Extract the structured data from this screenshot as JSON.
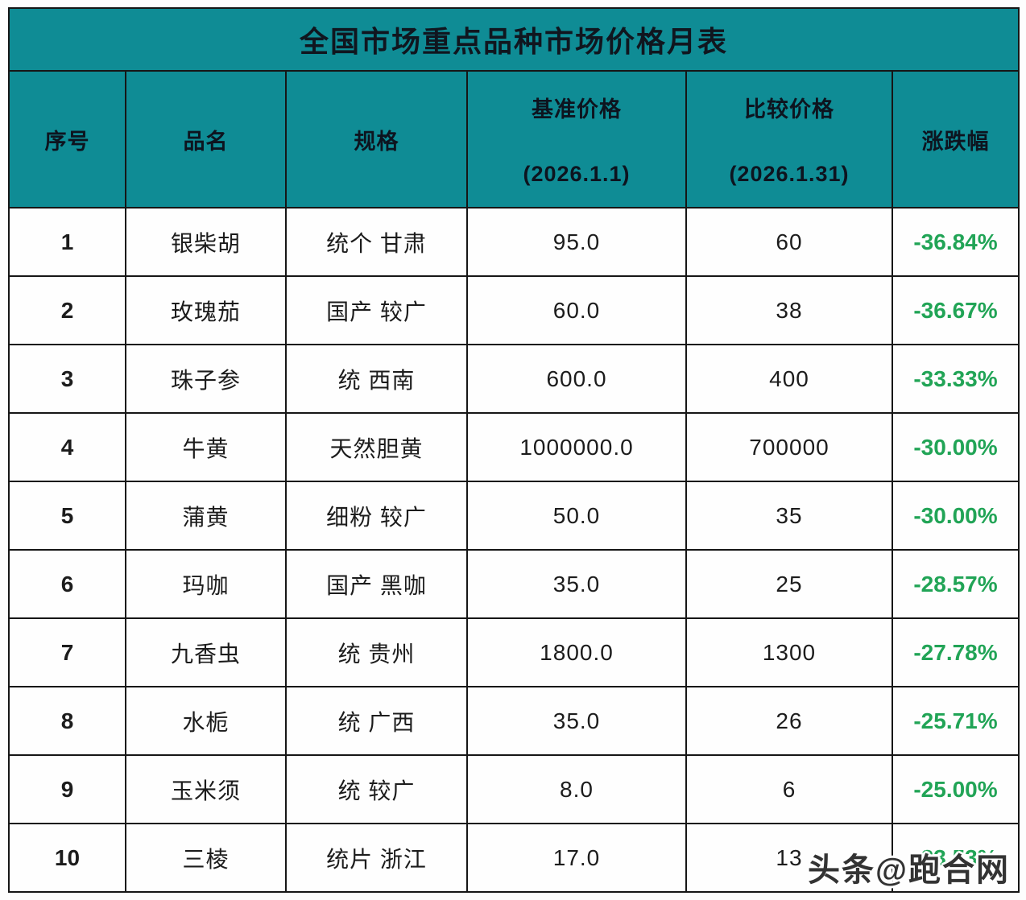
{
  "title": "全国市场重点品种市场价格月表",
  "watermark": {
    "text": "头条@跑合网"
  },
  "colors": {
    "header_bg": "#0f8c95",
    "change_green": "#21a456",
    "border": "#161616",
    "title_text": "#10161f"
  },
  "columns": [
    {
      "key": "index",
      "label": "序号",
      "sub": ""
    },
    {
      "key": "name",
      "label": "品名",
      "sub": ""
    },
    {
      "key": "spec",
      "label": "规格",
      "sub": ""
    },
    {
      "key": "base_price",
      "label": "基准价格",
      "sub": "(2026.1.1)"
    },
    {
      "key": "compare_price",
      "label": "比较价格",
      "sub": "(2026.1.31)"
    },
    {
      "key": "change",
      "label": "涨跌幅",
      "sub": ""
    }
  ],
  "rows": [
    {
      "index": "1",
      "name": "银柴胡",
      "spec": "统个 甘肃",
      "base_price": "95.0",
      "compare_price": "60",
      "change": "-36.84%"
    },
    {
      "index": "2",
      "name": "玫瑰茄",
      "spec": "国产 较广",
      "base_price": "60.0",
      "compare_price": "38",
      "change": "-36.67%"
    },
    {
      "index": "3",
      "name": "珠子参",
      "spec": "统 西南",
      "base_price": "600.0",
      "compare_price": "400",
      "change": "-33.33%"
    },
    {
      "index": "4",
      "name": "牛黄",
      "spec": "天然胆黄",
      "base_price": "1000000.0",
      "compare_price": "700000",
      "change": "-30.00%"
    },
    {
      "index": "5",
      "name": "蒲黄",
      "spec": "细粉 较广",
      "base_price": "50.0",
      "compare_price": "35",
      "change": "-30.00%"
    },
    {
      "index": "6",
      "name": "玛咖",
      "spec": "国产 黑咖",
      "base_price": "35.0",
      "compare_price": "25",
      "change": "-28.57%"
    },
    {
      "index": "7",
      "name": "九香虫",
      "spec": "统 贵州",
      "base_price": "1800.0",
      "compare_price": "1300",
      "change": "-27.78%"
    },
    {
      "index": "8",
      "name": "水栀",
      "spec": "统 广西",
      "base_price": "35.0",
      "compare_price": "26",
      "change": "-25.71%"
    },
    {
      "index": "9",
      "name": "玉米须",
      "spec": "统 较广",
      "base_price": "8.0",
      "compare_price": "6",
      "change": "-25.00%"
    },
    {
      "index": "10",
      "name": "三棱",
      "spec": "统片 浙江",
      "base_price": "17.0",
      "compare_price": "13",
      "change": "-23.53%"
    }
  ],
  "chart_data": {
    "type": "table",
    "title": "全国市场重点品种市场价格月表",
    "columns": [
      "序号",
      "品名",
      "规格",
      "基准价格 (2026.1.1)",
      "比较价格 (2026.1.31)",
      "涨跌幅"
    ],
    "rows": [
      [
        "1",
        "银柴胡",
        "统个 甘肃",
        95.0,
        60,
        "-36.84%"
      ],
      [
        "2",
        "玫瑰茄",
        "国产 较广",
        60.0,
        38,
        "-36.67%"
      ],
      [
        "3",
        "珠子参",
        "统 西南",
        600.0,
        400,
        "-33.33%"
      ],
      [
        "4",
        "牛黄",
        "天然胆黄",
        1000000.0,
        700000,
        "-30.00%"
      ],
      [
        "5",
        "蒲黄",
        "细粉 较广",
        50.0,
        35,
        "-30.00%"
      ],
      [
        "6",
        "玛咖",
        "国产 黑咖",
        35.0,
        25,
        "-28.57%"
      ],
      [
        "7",
        "九香虫",
        "统 贵州",
        1800.0,
        1300,
        "-27.78%"
      ],
      [
        "8",
        "水栀",
        "统 广西",
        35.0,
        26,
        "-25.71%"
      ],
      [
        "9",
        "玉米须",
        "统 较广",
        8.0,
        6,
        "-25.00%"
      ],
      [
        "10",
        "三棱",
        "统片 浙江",
        17.0,
        13,
        "-23.53%"
      ]
    ]
  }
}
